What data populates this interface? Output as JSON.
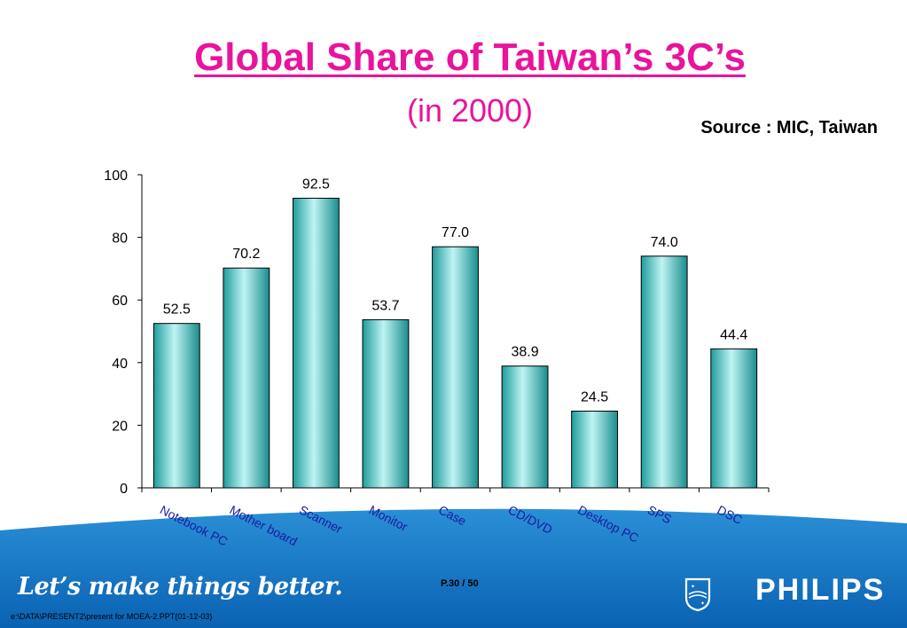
{
  "header": {
    "title": "Global Share of Taiwan’s 3C’s",
    "subtitle": "(in 2000)",
    "source": "Source : MIC, Taiwan"
  },
  "chart_data": {
    "type": "bar",
    "categories": [
      "Notebook PC",
      "Mother  board",
      "Scanner",
      "Monitor",
      "Case",
      "CD/DVD",
      "Desktop PC",
      "SPS",
      "DSC"
    ],
    "values": [
      52.5,
      70.2,
      92.5,
      53.7,
      77.0,
      38.9,
      24.5,
      74.0,
      44.4
    ],
    "value_labels": [
      "52.5",
      "70.2",
      "92.5",
      "53.7",
      "77.0",
      "38.9",
      "24.5",
      "74.0",
      "44.4"
    ],
    "yticks": [
      "0",
      "20",
      "40",
      "60",
      "80",
      "100"
    ],
    "ylim": [
      0,
      100
    ],
    "bar_color": "#3dbcbc",
    "category_label_color": "#1a1aa0",
    "grid": false,
    "legend": "none"
  },
  "footer": {
    "slogan": "Let’s make things better.",
    "page": "P.30 / 50",
    "file_path": "e:\\DATA\\PRESENT2\\present for MOEA-2.PPT(01-12-03)",
    "brand": "PHILIPS",
    "logo_icon": "philips-shield-icon",
    "band_color": "#0b6fc1"
  }
}
